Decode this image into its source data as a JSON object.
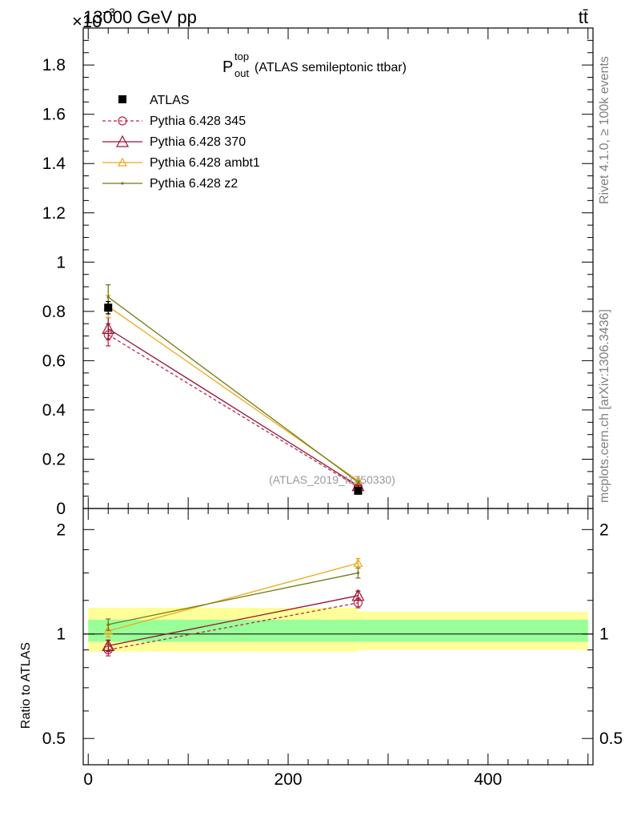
{
  "header": {
    "left_title": "13000 GeV pp",
    "right_title": "tt̄",
    "exponent_base": "×10",
    "exponent_power": "−3"
  },
  "side_labels": {
    "rivet": "Rivet 4.1.0, ≥ 100k events",
    "mcplots": "mcplots.cern.ch [arXiv:1306.3436]"
  },
  "colors": {
    "atlas": "#000000",
    "p345": "#b52a4a",
    "p370": "#9b1030",
    "ambt1": "#f0a81a",
    "z2": "#757a10",
    "band_outer": "#ffff99",
    "band_inner": "#99ff99"
  },
  "chart_data": [
    {
      "type": "line",
      "title_main": "P",
      "title_sup": "top",
      "title_sub": "out",
      "title_rest": " (ATLAS semileptonic ttbar)",
      "reference": "(ATLAS_2019_I1750330)",
      "xlim": [
        -5,
        505
      ],
      "ylim": [
        0,
        1.95
      ],
      "ytick_labels": [
        "0",
        "0.2",
        "0.4",
        "0.6",
        "0.8",
        "1",
        "1.2",
        "1.4",
        "1.6",
        "1.8"
      ],
      "series": [
        {
          "key": "atlas",
          "name": "ATLAS",
          "marker": "square",
          "dash": false,
          "x": [
            20,
            270
          ],
          "y": [
            0.815,
            0.072
          ],
          "err": [
            0.025,
            0.01
          ]
        },
        {
          "key": "p345",
          "name": "Pythia 6.428 345",
          "marker": "circle",
          "dash": true,
          "x": [
            20,
            270
          ],
          "y": [
            0.705,
            0.087
          ],
          "err": [
            0.045,
            0.005
          ]
        },
        {
          "key": "p370",
          "name": "Pythia 6.428 370",
          "marker": "triangle-big",
          "dash": false,
          "x": [
            20,
            270
          ],
          "y": [
            0.73,
            0.092
          ],
          "err": [
            0.045,
            0.005
          ]
        },
        {
          "key": "ambt1",
          "name": "Pythia 6.428 ambt1",
          "marker": "triangle",
          "dash": false,
          "x": [
            20,
            270
          ],
          "y": [
            0.82,
            0.113
          ],
          "err": [
            0.045,
            0.005
          ]
        },
        {
          "key": "z2",
          "name": "Pythia 6.428 z2",
          "marker": "dot",
          "dash": false,
          "x": [
            20,
            270
          ],
          "y": [
            0.858,
            0.107
          ],
          "err": [
            0.05,
            0.005
          ]
        }
      ]
    },
    {
      "type": "line",
      "ylabel": "Ratio to ATLAS",
      "scale": "log",
      "xlim": [
        -5,
        505
      ],
      "ylim": [
        0.42,
        2.3
      ],
      "xtick_labels": [
        "0",
        "200",
        "400"
      ],
      "ytick_labels": [
        "0.5",
        "1",
        "2"
      ],
      "bands": [
        {
          "name": "outer",
          "x": [
            0,
            500
          ],
          "x_split": 270,
          "lo_left": 0.89,
          "hi_left": 1.19,
          "lo_right": 0.9,
          "hi_right": 1.16
        },
        {
          "name": "inner",
          "x": [
            0,
            500
          ],
          "x_split": 270,
          "lo_left": 0.95,
          "hi_left": 1.1,
          "lo_right": 0.95,
          "hi_right": 1.1
        }
      ],
      "series": [
        {
          "key": "p345",
          "name": "Pythia 6.428 345",
          "marker": "circle",
          "dash": true,
          "x": [
            20,
            270
          ],
          "y": [
            0.9,
            1.23
          ],
          "err": [
            0.035,
            0.04
          ]
        },
        {
          "key": "p370",
          "name": "Pythia 6.428 370",
          "marker": "triangle-big",
          "dash": false,
          "x": [
            20,
            270
          ],
          "y": [
            0.925,
            1.29
          ],
          "err": [
            0.035,
            0.04
          ]
        },
        {
          "key": "ambt1",
          "name": "Pythia 6.428 ambt1",
          "marker": "triangle",
          "dash": false,
          "x": [
            20,
            270
          ],
          "y": [
            1.02,
            1.6
          ],
          "err": [
            0.04,
            0.05
          ]
        },
        {
          "key": "z2",
          "name": "Pythia 6.428 z2",
          "marker": "dot",
          "dash": false,
          "x": [
            20,
            270
          ],
          "y": [
            1.065,
            1.5
          ],
          "err": [
            0.04,
            0.05
          ]
        }
      ]
    }
  ]
}
